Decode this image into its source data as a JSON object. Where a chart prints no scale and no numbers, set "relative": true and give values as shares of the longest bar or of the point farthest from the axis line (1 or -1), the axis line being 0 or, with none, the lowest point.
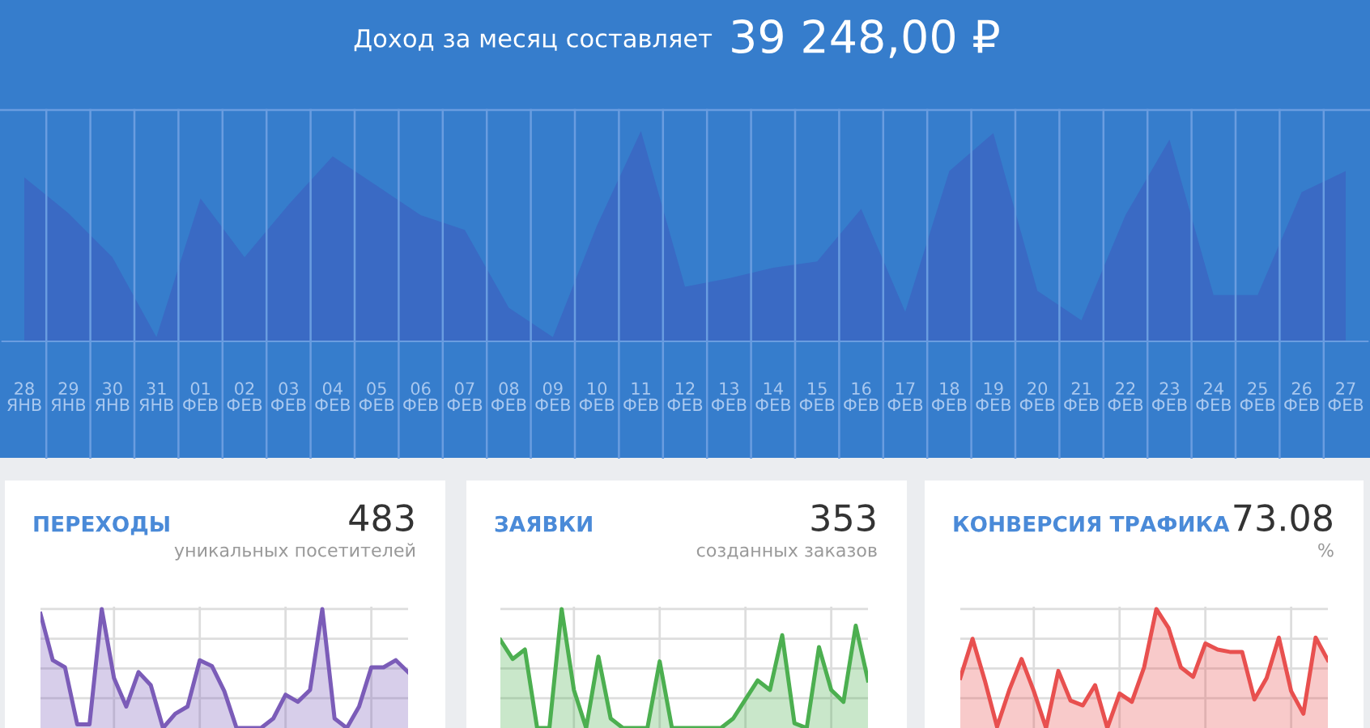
{
  "chart_data": [
    {
      "type": "area",
      "title": "Доход за месяц составляет",
      "subtitle": "39 248,00 ₽",
      "relative": true,
      "grid": "x",
      "tick_labels": "x",
      "categories": [
        "28\nЯНВ",
        "29\nЯНВ",
        "30\nЯНВ",
        "31\nЯНВ",
        "01\nФЕВ",
        "02\nФЕВ",
        "03\nФЕВ",
        "04\nФЕВ",
        "05\nФЕВ",
        "06\nФЕВ",
        "07\nФЕВ",
        "08\nФЕВ",
        "09\nФЕВ",
        "10\nФЕВ",
        "11\nФЕВ",
        "12\nФЕВ",
        "13\nФЕВ",
        "14\nФЕВ",
        "15\nФЕВ",
        "16\nФЕВ",
        "17\nФЕВ",
        "18\nФЕВ",
        "19\nФЕВ",
        "20\nФЕВ",
        "21\nФЕВ",
        "22\nФЕВ",
        "23\nФЕВ",
        "24\nФЕВ",
        "25\nФЕВ",
        "26\nФЕВ",
        "27\nФЕВ"
      ],
      "series": [
        {
          "color": "#3a6ac4",
          "values": [
            0.78,
            0.61,
            0.4,
            0.02,
            0.68,
            0.4,
            0.65,
            0.88,
            0.74,
            0.6,
            0.53,
            0.16,
            0.02,
            0.55,
            1.0,
            0.26,
            0.3,
            0.35,
            0.38,
            0.63,
            0.14,
            0.81,
            0.99,
            0.24,
            0.1,
            0.6,
            0.96,
            0.22,
            0.22,
            0.71,
            0.81
          ]
        }
      ]
    },
    {
      "type": "area",
      "title": "ПЕРЕХОДЫ",
      "annotations": [
        "483",
        "уникальных посетителей"
      ],
      "relative": true,
      "grid": true,
      "tick_labels": false,
      "categories": [
        null,
        null,
        null,
        null,
        null,
        null,
        null,
        null,
        null,
        null,
        null,
        null,
        null,
        null,
        null,
        null,
        null,
        null,
        null,
        null,
        null,
        null,
        null,
        null,
        null,
        null,
        null,
        null,
        null,
        null,
        null
      ],
      "series": [
        {
          "color": "#7b5cb8",
          "values": [
            0.96,
            0.57,
            0.51,
            0.03,
            0.03,
            1.0,
            0.42,
            0.18,
            0.47,
            0.36,
            0,
            0.12,
            0.18,
            0.57,
            0.52,
            0.31,
            0,
            0,
            0,
            0.08,
            0.28,
            0.22,
            0.32,
            1.0,
            0.08,
            0,
            0.18,
            0.51,
            0.51,
            0.57,
            0.47
          ]
        }
      ]
    },
    {
      "type": "area",
      "title": "ЗАЯВКИ",
      "annotations": [
        "353",
        "созданных заказов"
      ],
      "relative": true,
      "grid": true,
      "tick_labels": false,
      "categories": [
        null,
        null,
        null,
        null,
        null,
        null,
        null,
        null,
        null,
        null,
        null,
        null,
        null,
        null,
        null,
        null,
        null,
        null,
        null,
        null,
        null,
        null,
        null,
        null,
        null,
        null,
        null,
        null,
        null,
        null,
        null
      ],
      "series": [
        {
          "color": "#4caf50",
          "values": [
            0.74,
            0.58,
            0.66,
            0,
            0,
            1.0,
            0.32,
            0,
            0.6,
            0.08,
            0,
            0,
            0,
            0.56,
            0,
            0,
            0,
            0,
            0,
            0.08,
            0.24,
            0.4,
            0.32,
            0.78,
            0.04,
            0,
            0.68,
            0.32,
            0.22,
            0.86,
            0.4
          ]
        }
      ]
    },
    {
      "type": "area",
      "title": "КОНВЕРСИЯ ТРАФИКА",
      "annotations": [
        "73.08",
        "%"
      ],
      "relative": true,
      "grid": true,
      "tick_labels": false,
      "categories": [
        null,
        null,
        null,
        null,
        null,
        null,
        null,
        null,
        null,
        null,
        null,
        null,
        null,
        null,
        null,
        null,
        null,
        null,
        null,
        null,
        null,
        null,
        null,
        null,
        null,
        null,
        null,
        null,
        null,
        null,
        null
      ],
      "series": [
        {
          "color": "#e8504f",
          "values": [
            0.42,
            0.75,
            0.4,
            0.01,
            0.32,
            0.58,
            0.31,
            0,
            0.48,
            0.23,
            0.19,
            0.36,
            0,
            0.29,
            0.22,
            0.51,
            1.0,
            0.84,
            0.51,
            0.43,
            0.71,
            0.66,
            0.64,
            0.64,
            0.24,
            0.42,
            0.76,
            0.31,
            0.12,
            0.76,
            0.57
          ]
        }
      ]
    }
  ]
}
